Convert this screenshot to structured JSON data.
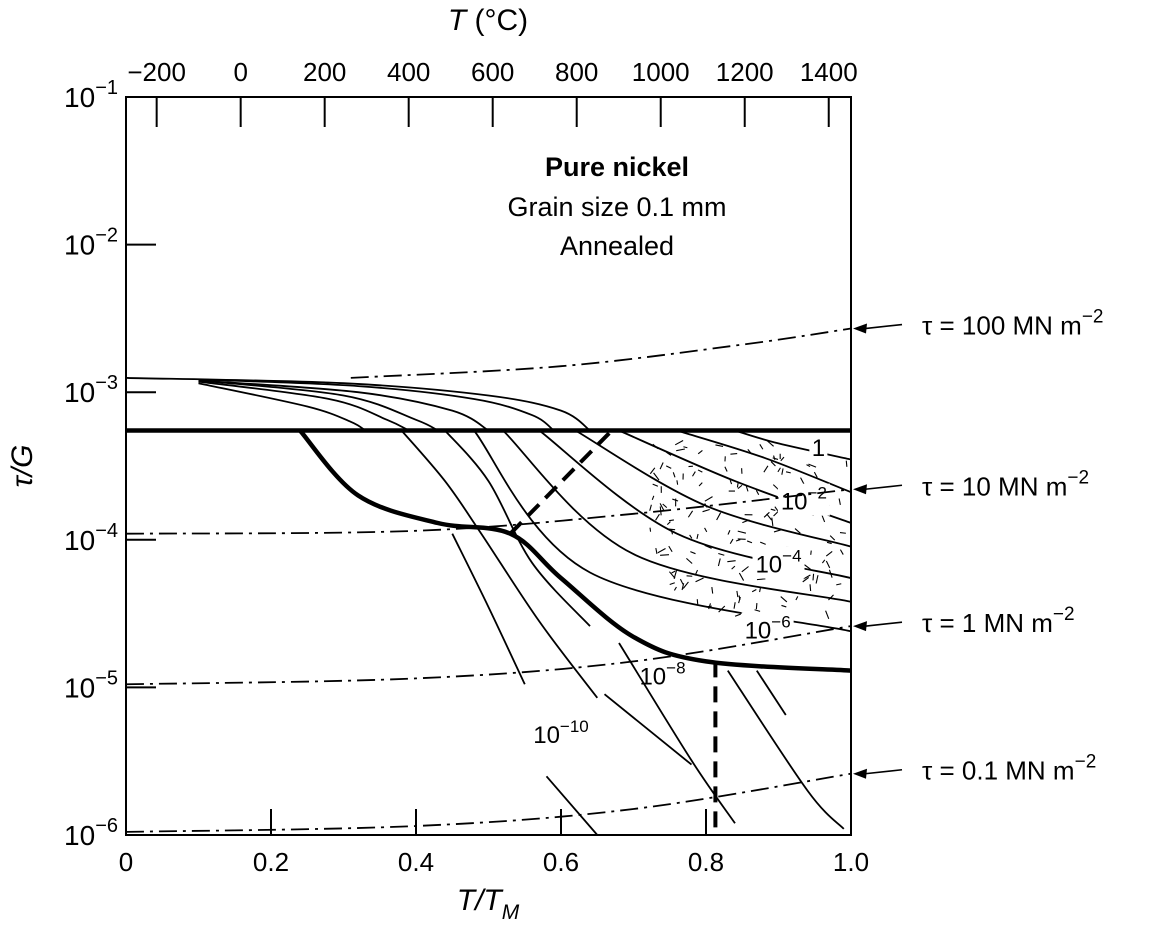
{
  "chart_data": {
    "type": "line",
    "title": "Pure nickel",
    "subtitle_lines": [
      "Grain size 0.1 mm",
      "Annealed"
    ],
    "x_axis": {
      "label_main": "T/T",
      "label_sub": "M",
      "range": [
        0,
        1.0
      ],
      "ticks": [
        {
          "value": 0,
          "label": "0"
        },
        {
          "value": 0.2,
          "label": "0.2"
        },
        {
          "value": 0.4,
          "label": "0.4"
        },
        {
          "value": 0.6,
          "label": "0.6"
        },
        {
          "value": 0.8,
          "label": "0.8"
        },
        {
          "value": 1.0,
          "label": "1.0"
        }
      ]
    },
    "y_axis": {
      "label": "τ/G",
      "scale": "log",
      "range": [
        1e-06,
        0.1
      ],
      "ticks": [
        {
          "value": 1e-06,
          "base": "10",
          "exp": "−6"
        },
        {
          "value": 1e-05,
          "base": "10",
          "exp": "−5"
        },
        {
          "value": 0.0001,
          "base": "10",
          "exp": "−4"
        },
        {
          "value": 0.001,
          "base": "10",
          "exp": "−3"
        },
        {
          "value": 0.01,
          "base": "10",
          "exp": "−2"
        },
        {
          "value": 0.1,
          "base": "10",
          "exp": "−1"
        }
      ]
    },
    "top_axis": {
      "label_var": "T",
      "label_unit": " (°C)",
      "ticks": [
        {
          "value": -200,
          "label": "−200"
        },
        {
          "value": 0,
          "label": "0"
        },
        {
          "value": 200,
          "label": "200"
        },
        {
          "value": 400,
          "label": "400"
        },
        {
          "value": 600,
          "label": "600"
        },
        {
          "value": 800,
          "label": "800"
        },
        {
          "value": 1000,
          "label": "1000"
        },
        {
          "value": 1200,
          "label": "1200"
        },
        {
          "value": 1400,
          "label": "1400"
        }
      ]
    },
    "stress_contours": [
      {
        "label": "τ = 100 MN m",
        "exp": "−2",
        "points": [
          [
            0.31,
            0.00125
          ],
          [
            0.6,
            0.0015
          ],
          [
            0.85,
            0.0021
          ],
          [
            1.0,
            0.0027
          ]
        ]
      },
      {
        "label": "τ = 10 MN m",
        "exp": "−2",
        "points": [
          [
            0.0,
            0.00011
          ],
          [
            0.4,
            0.000115
          ],
          [
            0.7,
            0.00015
          ],
          [
            1.0,
            0.00022
          ]
        ]
      },
      {
        "label": "τ = 1 MN m",
        "exp": "−2",
        "points": [
          [
            0.0,
            1.05e-05
          ],
          [
            0.4,
            1.15e-05
          ],
          [
            0.7,
            1.5e-05
          ],
          [
            1.0,
            2.6e-05
          ]
        ]
      },
      {
        "label": "τ = 0.1 MN m",
        "exp": "−2",
        "points": [
          [
            0.0,
            1.05e-06
          ],
          [
            0.4,
            1.15e-06
          ],
          [
            0.7,
            1.5e-06
          ],
          [
            1.0,
            2.6e-06
          ]
        ]
      }
    ],
    "strain_rate_contours": [
      {
        "points": [
          [
            0.0,
            0.00125
          ],
          [
            0.3,
            0.00115
          ],
          [
            0.5,
            0.00095
          ],
          [
            0.6,
            0.00075
          ],
          [
            0.64,
            0.00055
          ]
        ]
      },
      {
        "points": [
          [
            0.1,
            0.00122
          ],
          [
            0.32,
            0.0011
          ],
          [
            0.48,
            0.0009
          ],
          [
            0.56,
            0.0007
          ],
          [
            0.59,
            0.00055
          ]
        ]
      },
      {
        "points": [
          [
            0.1,
            0.0012
          ],
          [
            0.32,
            0.001
          ],
          [
            0.45,
            0.00075
          ],
          [
            0.5,
            0.00055
          ]
        ]
      },
      {
        "points": [
          [
            0.1,
            0.0012
          ],
          [
            0.3,
            0.00095
          ],
          [
            0.4,
            0.00065
          ],
          [
            0.43,
            0.00055
          ]
        ]
      },
      {
        "points": [
          [
            0.1,
            0.00118
          ],
          [
            0.28,
            0.0009
          ],
          [
            0.36,
            0.00065
          ],
          [
            0.39,
            0.00055
          ]
        ]
      },
      {
        "points": [
          [
            0.1,
            0.00115
          ],
          [
            0.25,
            0.0008
          ],
          [
            0.31,
            0.00063
          ],
          [
            0.33,
            0.00055
          ]
        ]
      },
      {
        "label": "1",
        "label_at": [
          0.955,
          0.00037
        ],
        "points": [
          [
            0.84,
            0.00055
          ],
          [
            0.9,
            0.00045
          ],
          [
            1.0,
            0.00035
          ]
        ]
      },
      {
        "points": [
          [
            0.76,
            0.00055
          ],
          [
            0.88,
            0.00036
          ],
          [
            1.0,
            0.00021
          ]
        ]
      },
      {
        "label": "10",
        "exp": "−2",
        "label_at": [
          0.935,
          0.00016
        ],
        "points": [
          [
            0.68,
            0.00055
          ],
          [
            0.84,
            0.00025
          ],
          [
            1.0,
            0.00013
          ]
        ]
      },
      {
        "points": [
          [
            0.62,
            0.00055
          ],
          [
            0.8,
            0.00017
          ],
          [
            1.0,
            9e-05
          ]
        ]
      },
      {
        "label": "10",
        "exp": "−4",
        "label_at": [
          0.9,
          6e-05
        ],
        "points": [
          [
            0.57,
            0.00055
          ],
          [
            0.76,
            0.00011
          ],
          [
            1.0,
            5.5e-05
          ]
        ]
      },
      {
        "points": [
          [
            0.52,
            0.00055
          ],
          [
            0.7,
            8e-05
          ],
          [
            1.0,
            3.8e-05
          ]
        ]
      },
      {
        "label": "10",
        "exp": "−6",
        "label_at": [
          0.885,
          2.15e-05
        ],
        "points": [
          [
            0.48,
            0.00055
          ],
          [
            0.64,
            6e-05
          ],
          [
            1.0,
            2.4e-05
          ]
        ]
      },
      {
        "label": "10",
        "exp": "−8",
        "label_at": [
          0.74,
          1.05e-05
        ],
        "points": [
          [
            0.44,
            0.00055
          ],
          [
            0.5,
            0.00025
          ],
          [
            0.56,
            7e-05
          ],
          [
            0.64,
            2.6e-05
          ]
        ]
      },
      {
        "label": "10",
        "exp": "−10",
        "label_at": [
          0.6,
          4.2e-06
        ],
        "points": [
          [
            0.38,
            0.00055
          ],
          [
            0.44,
            0.00025
          ],
          [
            0.49,
            0.00011
          ],
          [
            0.57,
            2.8e-05
          ],
          [
            0.65,
            8.5e-06
          ]
        ]
      },
      {
        "points": [
          [
            0.45,
            0.00011
          ],
          [
            0.5,
            3.5e-05
          ],
          [
            0.55,
            1.05e-05
          ]
        ]
      },
      {
        "points": [
          [
            0.58,
            2.5e-06
          ],
          [
            0.65,
            1e-06
          ]
        ]
      },
      {
        "points": [
          [
            0.78,
            3e-06
          ],
          [
            0.66,
            9e-06
          ]
        ]
      },
      {
        "points": [
          [
            0.68,
            2e-05
          ],
          [
            0.78,
            3.2e-06
          ],
          [
            0.84,
            1.2e-06
          ]
        ]
      },
      {
        "points": [
          [
            0.83,
            1.3e-05
          ],
          [
            0.94,
            2e-06
          ],
          [
            0.99,
            1.1e-06
          ]
        ]
      },
      {
        "points": [
          [
            0.87,
            1.3e-05
          ],
          [
            0.91,
            6.5e-06
          ]
        ]
      },
      {
        "points": [
          [
            0.47,
            1e-06
          ],
          [
            0.8,
            1e-06
          ]
        ]
      }
    ],
    "field_boundaries": [
      {
        "style": "solid",
        "points": [
          [
            0.0,
            0.00055
          ],
          [
            1.0,
            0.00055
          ]
        ]
      },
      {
        "style": "solid",
        "points": [
          [
            0.24,
            0.00055
          ],
          [
            0.32,
            0.0002
          ],
          [
            0.43,
            0.00013
          ],
          [
            0.53,
            0.00011
          ],
          [
            0.6,
            5.5e-05
          ],
          [
            0.7,
            2.2e-05
          ],
          [
            0.8,
            1.5e-05
          ],
          [
            1.0,
            1.3e-05
          ]
        ]
      },
      {
        "style": "dashed",
        "points": [
          [
            0.53,
            0.00011
          ],
          [
            0.67,
            0.00055
          ]
        ]
      },
      {
        "style": "dashed",
        "points": [
          [
            0.813,
            1.5e-05
          ],
          [
            0.813,
            1e-06
          ]
        ]
      }
    ],
    "grid": false
  }
}
